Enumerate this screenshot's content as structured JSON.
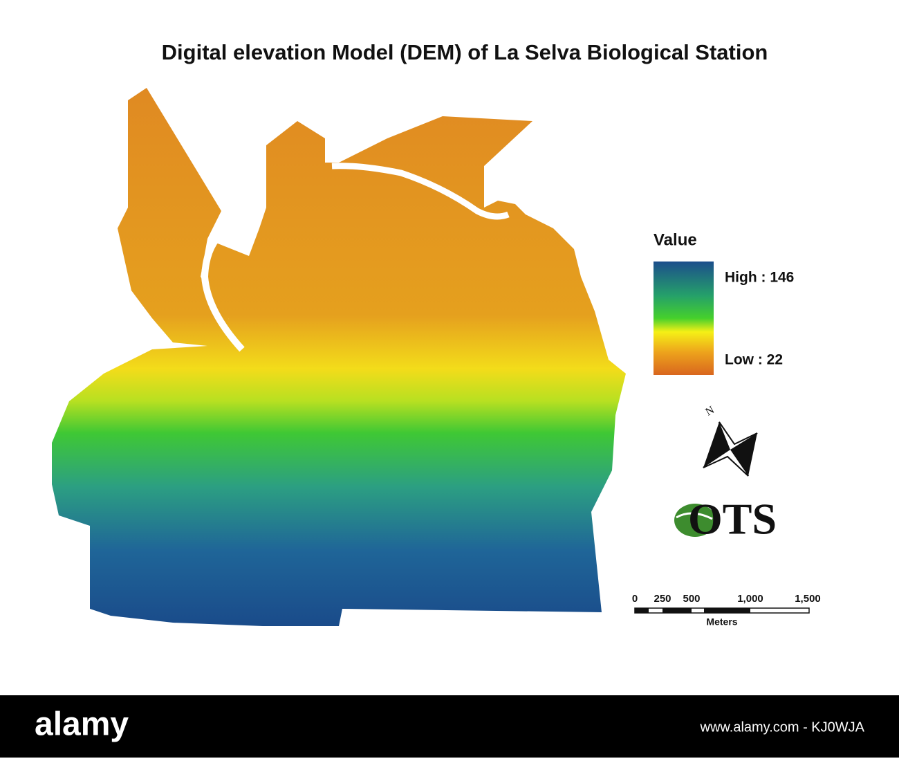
{
  "title": "Digital elevation Model (DEM) of La Selva Biological Station",
  "legend": {
    "title": "Value",
    "high_label": "High : 146",
    "low_label": "Low : 22"
  },
  "north_label": "N",
  "logo": "OTS",
  "scale_bar": {
    "labels": [
      "0",
      "250",
      "500",
      "1,000",
      "1,500"
    ],
    "unit": "Meters"
  },
  "footer": {
    "brand": "alamy",
    "credit": "www.alamy.com - KJ0WJA"
  }
}
